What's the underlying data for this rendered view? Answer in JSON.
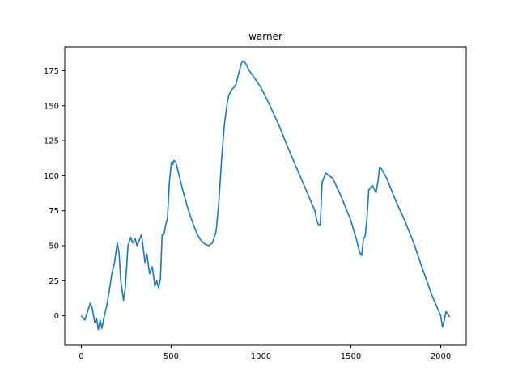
{
  "chart_data": {
    "type": "line",
    "title": "warner",
    "xlabel": "",
    "ylabel": "",
    "xlim": [
      -92,
      2142
    ],
    "ylim": [
      -21,
      192
    ],
    "x_ticks": [
      0,
      500,
      1000,
      1500,
      2000
    ],
    "y_ticks": [
      0,
      25,
      50,
      75,
      100,
      125,
      150,
      175
    ],
    "grid": false,
    "legend": "none",
    "series": [
      {
        "color": "#1f77b4",
        "x": [
          0,
          20,
          40,
          50,
          60,
          75,
          85,
          95,
          105,
          115,
          125,
          140,
          155,
          170,
          185,
          200,
          210,
          220,
          235,
          245,
          260,
          275,
          285,
          300,
          310,
          320,
          335,
          345,
          355,
          365,
          380,
          395,
          410,
          420,
          430,
          440,
          450,
          460,
          470,
          480,
          490,
          500,
          505,
          510,
          515,
          525,
          535,
          545,
          560,
          575,
          590,
          610,
          630,
          650,
          670,
          690,
          710,
          730,
          750,
          765,
          780,
          795,
          810,
          820,
          830,
          840,
          850,
          860,
          870,
          880,
          890,
          900,
          910,
          920,
          930,
          1000,
          1050,
          1100,
          1150,
          1200,
          1250,
          1300,
          1310,
          1320,
          1330,
          1340,
          1360,
          1400,
          1450,
          1500,
          1530,
          1550,
          1560,
          1570,
          1580,
          1590,
          1600,
          1620,
          1640,
          1650,
          1660,
          1670,
          1700,
          1750,
          1800,
          1850,
          1900,
          1950,
          1980,
          1990,
          2000,
          2010,
          2020,
          2030,
          2040,
          2050
        ],
        "y": [
          0,
          -3,
          5,
          9,
          6,
          -5,
          -2,
          -10,
          -3,
          -9,
          -2,
          6,
          17,
          30,
          38,
          52,
          45,
          25,
          11,
          20,
          50,
          56,
          52,
          55,
          50,
          53,
          58,
          48,
          38,
          44,
          30,
          35,
          21,
          25,
          20,
          26,
          58,
          58,
          65,
          70,
          95,
          108,
          110,
          108,
          111,
          110,
          105,
          100,
          92,
          85,
          78,
          70,
          63,
          57,
          53,
          51,
          50,
          52,
          60,
          80,
          110,
          135,
          150,
          157,
          160,
          162,
          163,
          165,
          170,
          175,
          180,
          182,
          181,
          179,
          176,
          163,
          150,
          136,
          120,
          105,
          90,
          75,
          68,
          65,
          65,
          95,
          102,
          98,
          84,
          68,
          55,
          45,
          43,
          55,
          57,
          70,
          90,
          93,
          88,
          95,
          106,
          105,
          98,
          82,
          68,
          52,
          33,
          15,
          6,
          3,
          0,
          -8,
          -3,
          3,
          1,
          -1
        ]
      }
    ]
  }
}
